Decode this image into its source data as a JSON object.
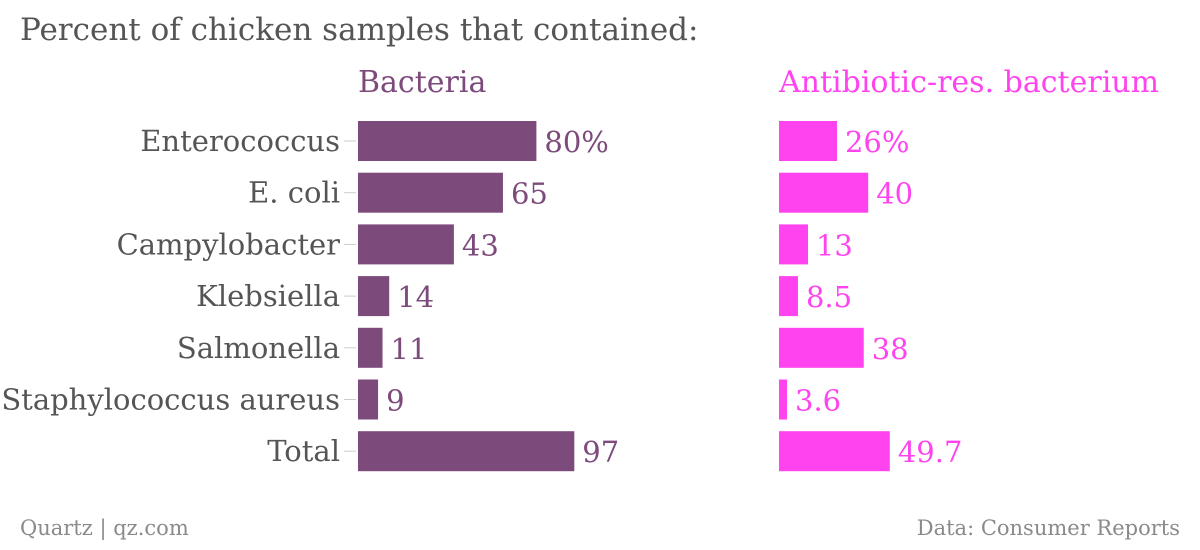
{
  "title": "Percent of chicken samples that contained:",
  "footer": {
    "source_left": "Quartz | qz.com",
    "source_right": "Data: Consumer Reports"
  },
  "chart_data": {
    "type": "bar",
    "orientation": "horizontal",
    "categories": [
      "Enterococcus",
      "E. coli",
      "Campylobacter",
      "Klebsiella",
      "Salmonella",
      "Staphylococcus aureus",
      "Total"
    ],
    "series": [
      {
        "name": "Bacteria",
        "color": "#7d4a7c",
        "values": [
          80,
          65,
          43,
          14,
          11,
          9,
          97
        ],
        "labels": [
          "80%",
          "65",
          "43",
          "14",
          "11",
          "9",
          "97"
        ]
      },
      {
        "name": "Antibiotic-res. bacterium",
        "color": "#ff44ef",
        "values": [
          26,
          40,
          13,
          8.5,
          38,
          3.6,
          49.7
        ],
        "labels": [
          "26%",
          "40",
          "13",
          "8.5",
          "38",
          "3.6",
          "49.7"
        ]
      }
    ]
  }
}
